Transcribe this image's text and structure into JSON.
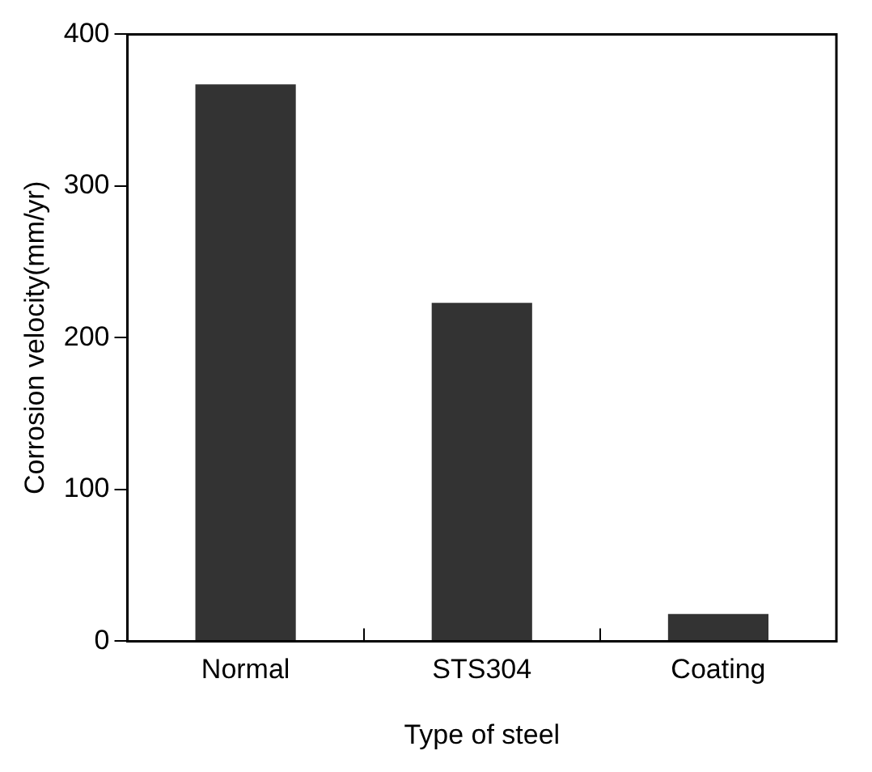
{
  "chart_data": {
    "type": "bar",
    "xlabel": "Type of steel",
    "ylabel": "Corrosion velocity(mm/yr)",
    "categories": [
      "Normal",
      "STS304",
      "Coating"
    ],
    "values": [
      367,
      223,
      18
    ],
    "color": "#333333",
    "ylim": [
      0,
      400
    ],
    "yticks": [
      0,
      100,
      200,
      300,
      400
    ],
    "grid": false,
    "legend": false
  }
}
